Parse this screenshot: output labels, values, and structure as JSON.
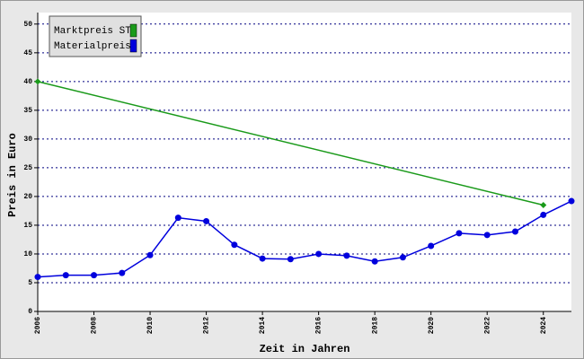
{
  "chart_data": {
    "type": "line",
    "x_label": "Zeit in Jahren",
    "y_label": "Preis in Euro",
    "series": [
      {
        "name": "Marktpreis ST",
        "color": "#1a9a1a",
        "marker": "diamond",
        "x": [
          2006,
          2024
        ],
        "values": [
          40,
          18.5
        ]
      },
      {
        "name": "Materialpreis",
        "color": "#0000dd",
        "marker": "circle",
        "x": [
          2006,
          2007,
          2008,
          2009,
          2010,
          2011,
          2012,
          2013,
          2014,
          2015,
          2016,
          2017,
          2018,
          2019,
          2020,
          2021,
          2022,
          2023,
          2024,
          2025
        ],
        "values": [
          6.0,
          6.3,
          6.3,
          6.7,
          9.8,
          16.3,
          15.7,
          11.6,
          9.2,
          9.1,
          10.0,
          9.7,
          8.7,
          9.4,
          11.4,
          13.6,
          13.3,
          13.9,
          16.8,
          19.2
        ]
      }
    ],
    "xlim": [
      2006,
      2025
    ],
    "xticks": [
      2006,
      2008,
      2010,
      2012,
      2014,
      2016,
      2018,
      2020,
      2022,
      2024
    ],
    "ylim": [
      0,
      52
    ],
    "yticks": [
      0,
      5,
      10,
      15,
      20,
      25,
      30,
      35,
      40,
      45,
      50
    ],
    "grid": true,
    "legend": "top-left"
  }
}
